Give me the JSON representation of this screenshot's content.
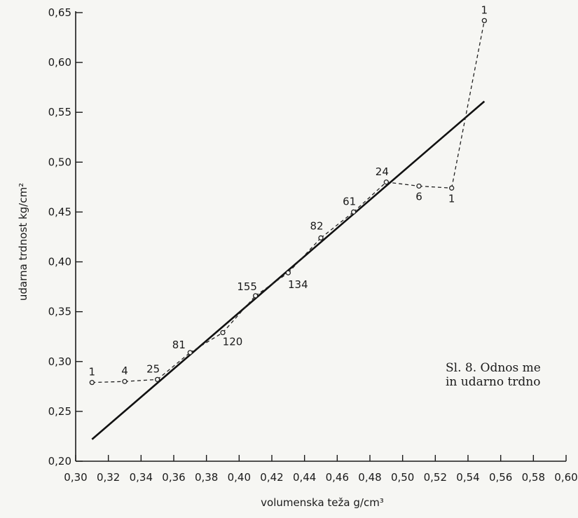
{
  "chart_data": {
    "type": "line",
    "title": "",
    "xlabel": "volumenska teža g/cm³",
    "ylabel": "udarna trdnost kg/cm²",
    "xlim": [
      0.3,
      0.6
    ],
    "ylim": [
      0.2,
      0.65
    ],
    "x_ticks": [
      "0,30",
      "0,32",
      "0,34",
      "0,36",
      "0,38",
      "0,40",
      "0,42",
      "0,44",
      "0,46",
      "0,48",
      "0,50",
      "0,52",
      "0,54",
      "0,56",
      "0,58",
      "0,60"
    ],
    "y_ticks": [
      "0,20",
      "0,25",
      "0,30",
      "0,35",
      "0,40",
      "0,45",
      "0,50",
      "0,55",
      "0,60",
      "0,65"
    ],
    "grid": false,
    "series": [
      {
        "kind": "observed",
        "style": "dashed-with-circles",
        "points": [
          {
            "x": 0.31,
            "y": 0.279,
            "label": "1"
          },
          {
            "x": 0.33,
            "y": 0.28,
            "label": "4"
          },
          {
            "x": 0.35,
            "y": 0.282,
            "label": "25"
          },
          {
            "x": 0.37,
            "y": 0.309,
            "label": "81"
          },
          {
            "x": 0.39,
            "y": 0.329,
            "label": "120"
          },
          {
            "x": 0.41,
            "y": 0.366,
            "label": "155"
          },
          {
            "x": 0.43,
            "y": 0.389,
            "label": "134"
          },
          {
            "x": 0.45,
            "y": 0.424,
            "label": "82"
          },
          {
            "x": 0.47,
            "y": 0.45,
            "label": "61"
          },
          {
            "x": 0.49,
            "y": 0.48,
            "label": "24"
          },
          {
            "x": 0.51,
            "y": 0.476,
            "label": "6"
          },
          {
            "x": 0.53,
            "y": 0.474,
            "label": "1"
          },
          {
            "x": 0.55,
            "y": 0.642,
            "label": "1"
          }
        ]
      },
      {
        "kind": "regression",
        "style": "solid",
        "points": [
          {
            "x": 0.31,
            "y": 0.222
          },
          {
            "x": 0.55,
            "y": 0.561
          }
        ]
      }
    ]
  },
  "caption": {
    "line1": "Sl. 8. Odnos me",
    "line2": "in udarno trdno"
  }
}
